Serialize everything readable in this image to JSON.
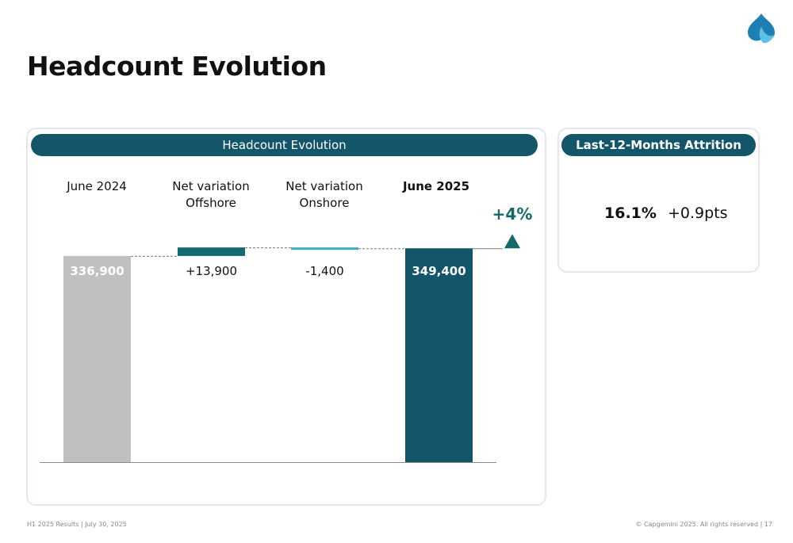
{
  "header": {
    "title": "Headcount Evolution",
    "logo_icon": "spade-logo-icon"
  },
  "chart_panel": {
    "header": "Headcount Evolution"
  },
  "chart_data": {
    "type": "bar",
    "title": "Headcount Evolution",
    "categories": [
      "June 2024",
      "Net variation\nOffshore",
      "Net variation\nOnshore",
      "June 2025"
    ],
    "values": [
      336900,
      13900,
      -1400,
      349400
    ],
    "value_labels": [
      "336,900",
      "+13,900",
      "-1,400",
      "349,400"
    ],
    "bar_kinds": [
      "total",
      "delta",
      "delta",
      "total"
    ],
    "colors": [
      "#c0c0c0",
      "#136a73",
      "#3fa9cc",
      "#13566a"
    ],
    "bold_categories": [
      false,
      false,
      false,
      true
    ],
    "ylim": [
      0,
      351000
    ],
    "growth_label": "+4%",
    "growth_color": "#136a6a",
    "grid": false
  },
  "attrition_panel": {
    "header": "Last-12-Months Attrition",
    "value": "16.1%",
    "delta": "+0.9pts"
  },
  "footer": {
    "left": "H1 2025 Results | July 30, 2025",
    "right": "© Capgemini 2025. All rights reserved  |   17"
  }
}
